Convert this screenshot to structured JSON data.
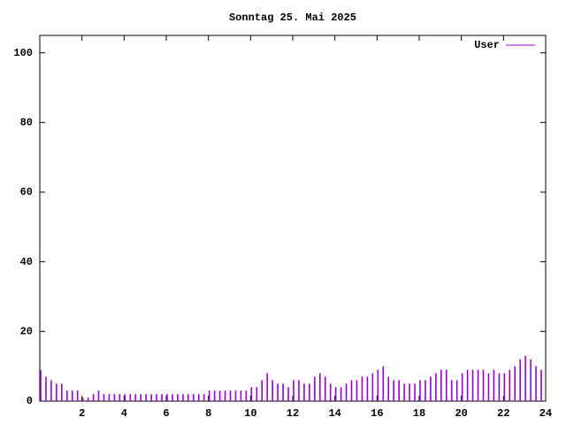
{
  "chart_data": {
    "type": "impulse",
    "title": "Sonntag 25. Mai 2025",
    "x": [
      0,
      0.25,
      0.5,
      0.75,
      1,
      1.25,
      1.5,
      1.75,
      2,
      2.25,
      2.5,
      2.75,
      3,
      3.25,
      3.5,
      3.75,
      4,
      4.25,
      4.5,
      4.75,
      5,
      5.25,
      5.5,
      5.75,
      6,
      6.25,
      6.5,
      6.75,
      7,
      7.25,
      7.5,
      7.75,
      8,
      8.25,
      8.5,
      8.75,
      9,
      9.25,
      9.5,
      9.75,
      10,
      10.25,
      10.5,
      10.75,
      11,
      11.25,
      11.5,
      11.75,
      12,
      12.25,
      12.5,
      12.75,
      13,
      13.25,
      13.5,
      13.75,
      14,
      14.25,
      14.5,
      14.75,
      15,
      15.25,
      15.5,
      15.75,
      16,
      16.25,
      16.5,
      16.75,
      17,
      17.25,
      17.5,
      17.75,
      18,
      18.25,
      18.5,
      18.75,
      19,
      19.25,
      19.5,
      19.75,
      20,
      20.25,
      20.5,
      20.75,
      21,
      21.25,
      21.5,
      21.75,
      22,
      22.25,
      22.5,
      22.75,
      23,
      23.25,
      23.5,
      23.75
    ],
    "series": [
      {
        "name": "User",
        "color": "#9400d3",
        "values": [
          9,
          7,
          6,
          5,
          5,
          3,
          3,
          3,
          1,
          1,
          2,
          3,
          2,
          2,
          2,
          2,
          2,
          2,
          2,
          2,
          2,
          2,
          2,
          2,
          2,
          2,
          2,
          2,
          2,
          2,
          2,
          2,
          3,
          3,
          3,
          3,
          3,
          3,
          3,
          3,
          4,
          4,
          6,
          8,
          6,
          5,
          5,
          4,
          6,
          6,
          5,
          5,
          7,
          8,
          7,
          5,
          4,
          4,
          5,
          6,
          6,
          7,
          7,
          8,
          9,
          10,
          7,
          6,
          6,
          5,
          5,
          5,
          6,
          6,
          7,
          8,
          9,
          9,
          6,
          6,
          8,
          9,
          9,
          9,
          9,
          8,
          9,
          8,
          8,
          9,
          10,
          12,
          13,
          12,
          10,
          9
        ]
      }
    ],
    "xlim": [
      0,
      24
    ],
    "xticks": [
      2,
      4,
      6,
      8,
      10,
      12,
      14,
      16,
      18,
      20,
      22,
      24
    ],
    "ylim": [
      0,
      105
    ],
    "yticks": [
      0,
      20,
      40,
      60,
      80,
      100
    ],
    "legend": "top-right"
  }
}
